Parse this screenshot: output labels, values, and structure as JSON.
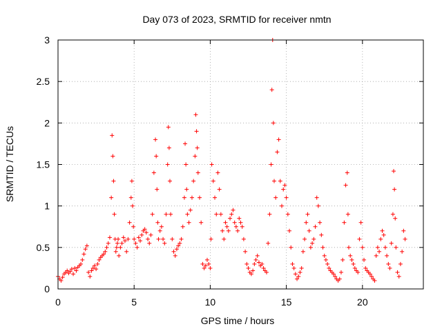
{
  "chart_data": {
    "type": "scatter",
    "title": "Day 073 of 2023, SRMTID for receiver nmtn",
    "xlabel": "GPS time / hours",
    "ylabel": "SRMTID / TECUs",
    "xlim": [
      0,
      24
    ],
    "ylim": [
      0,
      3
    ],
    "xticks": [
      0,
      5,
      10,
      15,
      20
    ],
    "yticks": [
      0,
      0.5,
      1,
      1.5,
      2,
      2.5,
      3
    ],
    "xtick_labels": [
      "0",
      "5",
      "10",
      "15",
      "20"
    ],
    "ytick_labels": [
      "0",
      "0.5",
      "1",
      "1.5",
      "2",
      "2.5",
      "3"
    ],
    "grid": true,
    "marker": "+",
    "color": "#ff0000",
    "series": [
      {
        "name": "SRMTID",
        "x": [
          0.0,
          0.1,
          0.2,
          0.3,
          0.4,
          0.5,
          0.6,
          0.7,
          0.8,
          0.9,
          1.0,
          1.1,
          1.2,
          1.3,
          1.4,
          1.5,
          1.6,
          1.7,
          1.8,
          1.9,
          2.0,
          2.1,
          2.2,
          2.3,
          2.4,
          2.5,
          2.6,
          2.7,
          2.8,
          2.9,
          3.0,
          3.1,
          3.2,
          3.3,
          3.4,
          3.5,
          3.55,
          3.6,
          3.65,
          3.7,
          3.75,
          3.8,
          3.85,
          3.9,
          3.95,
          4.0,
          4.1,
          4.2,
          4.3,
          4.4,
          4.5,
          4.6,
          4.7,
          4.8,
          4.85,
          4.9,
          4.95,
          5.0,
          5.1,
          5.2,
          5.3,
          5.4,
          5.5,
          5.6,
          5.7,
          5.8,
          5.9,
          6.0,
          6.1,
          6.2,
          6.3,
          6.4,
          6.45,
          6.5,
          6.55,
          6.6,
          6.7,
          6.8,
          6.9,
          7.0,
          7.1,
          7.2,
          7.25,
          7.3,
          7.35,
          7.4,
          7.5,
          7.6,
          7.7,
          7.8,
          7.9,
          8.0,
          8.1,
          8.2,
          8.3,
          8.35,
          8.4,
          8.45,
          8.5,
          8.6,
          8.7,
          8.8,
          8.9,
          9.0,
          9.05,
          9.1,
          9.15,
          9.2,
          9.3,
          9.4,
          9.5,
          9.6,
          9.7,
          9.8,
          9.9,
          10.0,
          10.05,
          10.1,
          10.2,
          10.3,
          10.4,
          10.5,
          10.6,
          10.7,
          10.8,
          10.9,
          11.0,
          11.1,
          11.2,
          11.3,
          11.4,
          11.5,
          11.6,
          11.7,
          11.8,
          11.9,
          12.0,
          12.1,
          12.2,
          12.3,
          12.4,
          12.5,
          12.6,
          12.7,
          12.8,
          12.9,
          13.0,
          13.1,
          13.2,
          13.3,
          13.4,
          13.5,
          13.6,
          13.7,
          13.8,
          13.9,
          14.0,
          14.05,
          14.1,
          14.15,
          14.2,
          14.3,
          14.4,
          14.5,
          14.6,
          14.7,
          14.8,
          14.9,
          15.0,
          15.1,
          15.2,
          15.3,
          15.4,
          15.5,
          15.6,
          15.7,
          15.8,
          15.9,
          16.0,
          16.1,
          16.2,
          16.3,
          16.4,
          16.5,
          16.6,
          16.7,
          16.8,
          16.9,
          17.0,
          17.1,
          17.2,
          17.3,
          17.4,
          17.5,
          17.6,
          17.7,
          17.8,
          17.9,
          18.0,
          18.1,
          18.2,
          18.3,
          18.4,
          18.5,
          18.6,
          18.7,
          18.8,
          18.9,
          19.0,
          19.05,
          19.1,
          19.2,
          19.3,
          19.4,
          19.5,
          19.6,
          19.7,
          19.8,
          19.9,
          20.0,
          20.1,
          20.2,
          20.3,
          20.4,
          20.5,
          20.6,
          20.7,
          20.8,
          20.9,
          21.0,
          21.1,
          21.2,
          21.3,
          21.4,
          21.5,
          21.6,
          21.7,
          21.8,
          21.9,
          22.0,
          22.05,
          22.1,
          22.15,
          22.2,
          22.3,
          22.4,
          22.5,
          22.6,
          22.7,
          22.8
        ],
        "y": [
          0.15,
          0.12,
          0.1,
          0.14,
          0.18,
          0.2,
          0.22,
          0.19,
          0.21,
          0.24,
          0.18,
          0.25,
          0.22,
          0.26,
          0.28,
          0.3,
          0.35,
          0.42,
          0.48,
          0.52,
          0.2,
          0.15,
          0.22,
          0.25,
          0.28,
          0.24,
          0.3,
          0.35,
          0.38,
          0.4,
          0.42,
          0.45,
          0.5,
          0.55,
          0.62,
          1.1,
          1.85,
          1.6,
          1.3,
          0.9,
          0.6,
          0.45,
          0.5,
          0.55,
          0.6,
          0.4,
          0.5,
          0.55,
          0.62,
          0.58,
          0.45,
          0.6,
          0.8,
          1.1,
          1.3,
          1.0,
          0.75,
          0.6,
          0.55,
          0.5,
          0.62,
          0.58,
          0.65,
          0.7,
          0.72,
          0.68,
          0.6,
          0.55,
          0.65,
          0.9,
          1.4,
          1.8,
          1.6,
          1.2,
          0.8,
          0.6,
          0.7,
          0.75,
          0.6,
          0.55,
          0.9,
          1.5,
          1.95,
          1.7,
          1.3,
          0.9,
          0.6,
          0.45,
          0.4,
          0.48,
          0.52,
          0.55,
          0.6,
          0.75,
          1.1,
          1.75,
          1.5,
          1.2,
          0.9,
          0.8,
          0.95,
          1.1,
          1.3,
          1.6,
          2.1,
          1.9,
          1.7,
          1.4,
          1.1,
          0.8,
          0.3,
          0.25,
          0.28,
          0.35,
          0.3,
          0.25,
          0.6,
          1.5,
          1.3,
          1.1,
          0.9,
          1.4,
          1.2,
          0.9,
          0.7,
          0.6,
          0.8,
          0.75,
          0.7,
          0.85,
          0.9,
          0.95,
          0.8,
          0.75,
          0.7,
          0.85,
          0.8,
          0.75,
          0.6,
          0.45,
          0.3,
          0.25,
          0.2,
          0.18,
          0.22,
          0.3,
          0.35,
          0.4,
          0.32,
          0.28,
          0.3,
          0.25,
          0.22,
          0.2,
          0.55,
          0.9,
          1.5,
          2.4,
          3.0,
          2.0,
          1.3,
          1.1,
          1.65,
          1.8,
          1.3,
          1.0,
          1.2,
          1.25,
          1.1,
          0.9,
          0.7,
          0.5,
          0.3,
          0.25,
          0.18,
          0.12,
          0.15,
          0.2,
          0.25,
          0.45,
          0.6,
          0.8,
          0.9,
          0.7,
          0.5,
          0.55,
          0.6,
          0.75,
          1.1,
          1.0,
          0.8,
          0.65,
          0.5,
          0.4,
          0.35,
          0.3,
          0.25,
          0.22,
          0.2,
          0.18,
          0.15,
          0.12,
          0.1,
          0.12,
          0.2,
          0.35,
          0.8,
          1.25,
          1.4,
          0.9,
          0.5,
          0.4,
          0.35,
          0.3,
          0.25,
          0.22,
          0.2,
          0.6,
          0.8,
          0.5,
          0.35,
          0.25,
          0.22,
          0.2,
          0.18,
          0.15,
          0.12,
          0.1,
          0.4,
          0.5,
          0.45,
          0.6,
          0.7,
          0.65,
          0.5,
          0.4,
          0.3,
          0.25,
          0.55,
          0.9,
          1.42,
          1.2,
          0.85,
          0.5,
          0.2,
          0.15,
          0.3,
          0.45,
          0.7,
          0.6
        ]
      }
    ]
  }
}
